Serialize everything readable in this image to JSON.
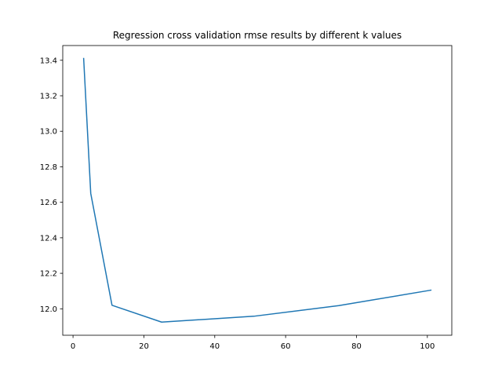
{
  "chart_data": {
    "type": "line",
    "title": "Regression cross validation rmse results by different k values",
    "xlabel": "",
    "ylabel": "",
    "xlim": [
      -2.9,
      106.9
    ],
    "ylim": [
      11.851,
      13.483
    ],
    "x_ticks": [
      0,
      20,
      40,
      60,
      80,
      100
    ],
    "y_ticks": [
      12.0,
      12.2,
      12.4,
      12.6,
      12.8,
      13.0,
      13.2,
      13.4
    ],
    "x_tick_labels": [
      "0",
      "20",
      "40",
      "60",
      "80",
      "100"
    ],
    "y_tick_labels": [
      "12.0",
      "12.2",
      "12.4",
      "12.6",
      "12.8",
      "13.0",
      "13.2",
      "13.4"
    ],
    "grid": false,
    "legend": "none",
    "series": [
      {
        "x": [
          3,
          5,
          11,
          25,
          51,
          75,
          101
        ],
        "y": [
          13.41,
          12.65,
          12.02,
          11.925,
          11.958,
          12.018,
          12.105
        ],
        "color": "#1f77b4"
      }
    ]
  }
}
